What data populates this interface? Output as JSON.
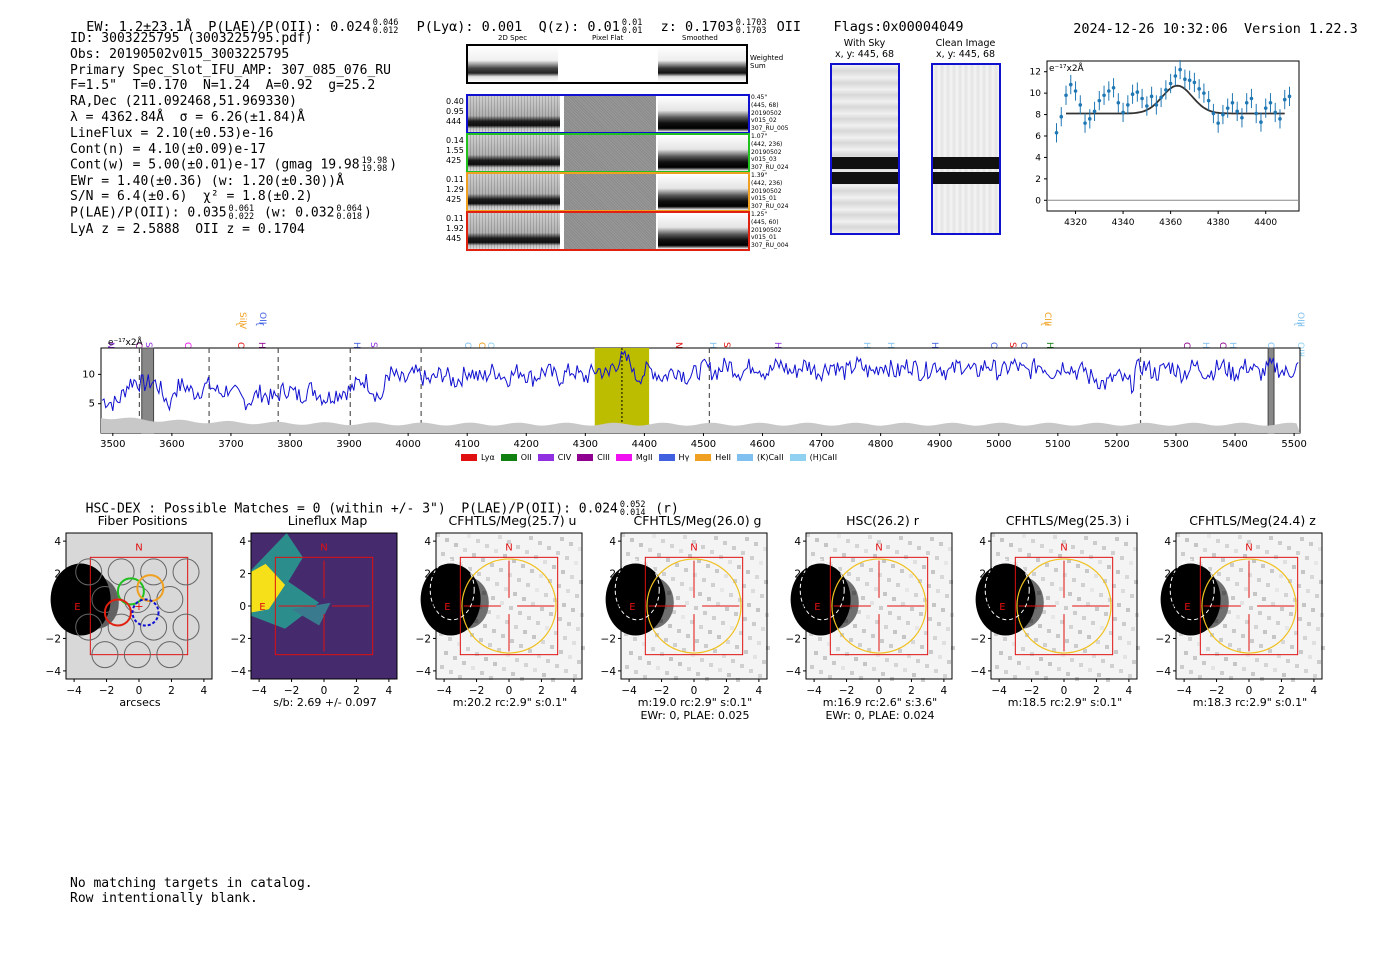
{
  "header": {
    "ew": "EW: 1.2±23.1Å",
    "plae_label": "P(LAE)/P(OII): 0.024",
    "plae_hi": "0.046",
    "plae_lo": "0.012",
    "plya": "P(Lyα): 0.001",
    "qz_label": "Q(z): 0.01",
    "qz_hi": "0.01",
    "qz_lo": "0.01",
    "z_label": "z: 0.1703",
    "z_hi": "0.1703",
    "z_lo": "0.1703",
    "z_line": "OII",
    "flags": "Flags:0x00004049",
    "datetime": "2024-12-26 10:32:06",
    "version": "Version 1.22.3"
  },
  "info": {
    "id": "ID: 3003225795 (3003225795.pdf)",
    "obs": "Obs: 20190502v015_3003225795",
    "primary": "Primary Spec_Slot_IFU_AMP: 307_085_076_RU",
    "fiber": "F=1.5\"  T=0.170  N=1.24  A=0.92  g=25.2",
    "radec": "RA,Dec (211.092468,51.969330)",
    "lambda": "λ = 4362.84Å  σ = 6.26(±1.84)Å",
    "lineflux": "LineFlux = 2.10(±0.53)e-16",
    "contn": "Cont(n) = 4.10(±0.09)e-17",
    "contw_label": "Cont(w) = 5.00(±0.01)e-17 (gmag 19.98",
    "contw_hi": "19.98",
    "contw_lo": "19.98",
    "contw_end": ")",
    "ewr": "EWr = 1.40(±0.36) (w: 1.20(±0.30))Å",
    "sn": "S/N = 6.4(±0.6)  χ² = 1.8(±0.2)",
    "plae_label": "P(LAE)/P(OII): 0.035",
    "plae_hi": "0.061",
    "plae_lo": "0.022",
    "plae_w": "(w: 0.032",
    "plae_w_hi": "0.064",
    "plae_w_lo": "0.018",
    "plae_end": ")",
    "lya": "LyA z = 2.5888  OII z = 0.1704"
  },
  "cutouts": {
    "col_2d": "2D Spec",
    "col_flat": "Pixel Flat",
    "col_smooth": "Smoothed",
    "weighted": "Weighted Sum",
    "rows": [
      {
        "color": "#1010d0",
        "left": [
          "0.40",
          "0.95",
          "444"
        ],
        "right": [
          "0.45\"",
          "(445, 68)",
          "20190502",
          "v015_02",
          "307_RU_005"
        ]
      },
      {
        "color": "#20c020",
        "left": [
          "0.14",
          "1.55",
          "425"
        ],
        "right": [
          "1.07\"",
          "(442, 236)",
          "20190502",
          "v015_03",
          "307_RU_024"
        ]
      },
      {
        "color": "#f0a020",
        "left": [
          "0.11",
          "1.29",
          "425"
        ],
        "right": [
          "1.39\"",
          "(442, 236)",
          "20190502",
          "v015_01",
          "307_RU_024"
        ]
      },
      {
        "color": "#e02010",
        "left": [
          "0.11",
          "1.92",
          "445"
        ],
        "right": [
          "1.25\"",
          "(445, 60)",
          "20190502",
          "v015_01",
          "307_RU_004"
        ]
      }
    ]
  },
  "sky": {
    "with_sky": "With Sky",
    "with_sky_xy": "x, y: 445, 68",
    "clean": "Clean Image",
    "clean_xy": "x, y: 445, 68"
  },
  "zoom_plot": {
    "ylabel": "e⁻¹⁷x2Å",
    "yticks": [
      "12",
      "10",
      "8",
      "6",
      "4",
      "2",
      "0"
    ],
    "xticks": [
      "4320",
      "4340",
      "4360",
      "4380",
      "4400"
    ]
  },
  "spectrum": {
    "ylabel": "e⁻¹⁷x2Å",
    "yticks": [
      "10",
      "5"
    ],
    "xticks": [
      "3500",
      "3600",
      "3700",
      "3800",
      "3900",
      "4000",
      "4100",
      "4200",
      "4300",
      "4400",
      "4500",
      "4600",
      "4700",
      "4800",
      "4900",
      "5000",
      "5100",
      "5200",
      "5300",
      "5400",
      "5500"
    ],
    "legend": [
      {
        "label": "Lyα",
        "color": "#e01010"
      },
      {
        "label": "OII",
        "color": "#108010"
      },
      {
        "label": "CIV",
        "color": "#9030e0"
      },
      {
        "label": "CIII",
        "color": "#900090"
      },
      {
        "label": "MgII",
        "color": "#f010f0"
      },
      {
        "label": "Hγ",
        "color": "#4060e0"
      },
      {
        "label": "HeII",
        "color": "#f0a020"
      },
      {
        "label": "(K)CaII",
        "color": "#80c0f0"
      },
      {
        "label": "(H)CaII",
        "color": "#90d0f0"
      }
    ],
    "lines": [
      {
        "label": "NV",
        "color": "#9030e0"
      },
      {
        "label": "CIV",
        "color": "#900090"
      },
      {
        "label": "SiII",
        "color": "#9030e0"
      },
      {
        "label": "CII",
        "color": "#f010f0"
      },
      {
        "label": "SiIV",
        "color": "#f0a020"
      },
      {
        "label": "OVI",
        "color": "#e01010"
      },
      {
        "label": "OII",
        "color": "#4060e0"
      },
      {
        "label": "HeII",
        "color": "#900090"
      },
      {
        "label": "Hζ",
        "color": "#4060e0"
      },
      {
        "label": "SiIV",
        "color": "#9030e0"
      },
      {
        "label": "OII",
        "color": "#80c0f0"
      },
      {
        "label": "CIV",
        "color": "#f0a020"
      },
      {
        "label": "OII",
        "color": "#90d0f0"
      },
      {
        "label": "NV",
        "color": "#e01010"
      },
      {
        "label": "Hδ",
        "color": "#80c0f0"
      },
      {
        "label": "SiII",
        "color": "#e01010"
      },
      {
        "label": "HeII",
        "color": "#9030e0"
      },
      {
        "label": "Hγ",
        "color": "#80c0f0"
      },
      {
        "label": "Hγ",
        "color": "#80c0f0"
      },
      {
        "label": "Hβ",
        "color": "#4060e0"
      },
      {
        "label": "OIII",
        "color": "#4060e0"
      },
      {
        "label": "SiIV",
        "color": "#e01010"
      },
      {
        "label": "OIII",
        "color": "#4060e0"
      },
      {
        "label": "CIII",
        "color": "#f0a020"
      },
      {
        "label": "Hγ",
        "color": "#108010"
      },
      {
        "label": "CII",
        "color": "#900090"
      },
      {
        "label": "Hβ",
        "color": "#80c0f0"
      },
      {
        "label": "CIII",
        "color": "#900090"
      },
      {
        "label": "Hβ",
        "color": "#80c0f0"
      },
      {
        "label": "OIII",
        "color": "#80c0f0"
      },
      {
        "label": "OIII",
        "color": "#80c0f0"
      },
      {
        "label": "OIII",
        "color": "#90d0f0"
      }
    ]
  },
  "hsc": {
    "title": "HSC-DEX : Possible Matches = 0 (within +/- 3\")  P(LAE)/P(OII): 0.024",
    "hi": "0.052",
    "lo": "0.014",
    "band": "(r)"
  },
  "imaging": {
    "ticks": [
      "4",
      "2",
      "0",
      "−2",
      "−4"
    ],
    "xticks": [
      "−4",
      "−2",
      "0",
      "2",
      "4"
    ],
    "north": "N",
    "east": "E",
    "panels": [
      {
        "title": "Fiber Positions",
        "cap1": "arcsecs",
        "cap2": ""
      },
      {
        "title": "Lineflux Map",
        "cap1": "s/b: 2.69 +/- 0.097",
        "cap2": ""
      },
      {
        "title": "CFHTLS/Meg(25.7) u",
        "cap1": "m:20.2 rc:2.9\"  s:0.1\"",
        "cap2": ""
      },
      {
        "title": "CFHTLS/Meg(26.0) g",
        "cap1": "m:19.0 rc:2.9\"  s:0.1\"",
        "cap2": "EWr: 0, PLAE: 0.025"
      },
      {
        "title": "HSC(26.2) r",
        "cap1": "m:16.9  rc:2.6\"  s:3.6\"",
        "cap2": "EWr: 0, PLAE: 0.024"
      },
      {
        "title": "CFHTLS/Meg(25.3) i",
        "cap1": "m:18.5 rc:2.9\"  s:0.1\"",
        "cap2": ""
      },
      {
        "title": "CFHTLS/Meg(24.4) z",
        "cap1": "m:18.3 rc:2.9\"  s:0.1\"",
        "cap2": ""
      }
    ]
  },
  "footer": {
    "line1": "No matching targets in catalog.",
    "line2": "Row intentionally blank."
  }
}
